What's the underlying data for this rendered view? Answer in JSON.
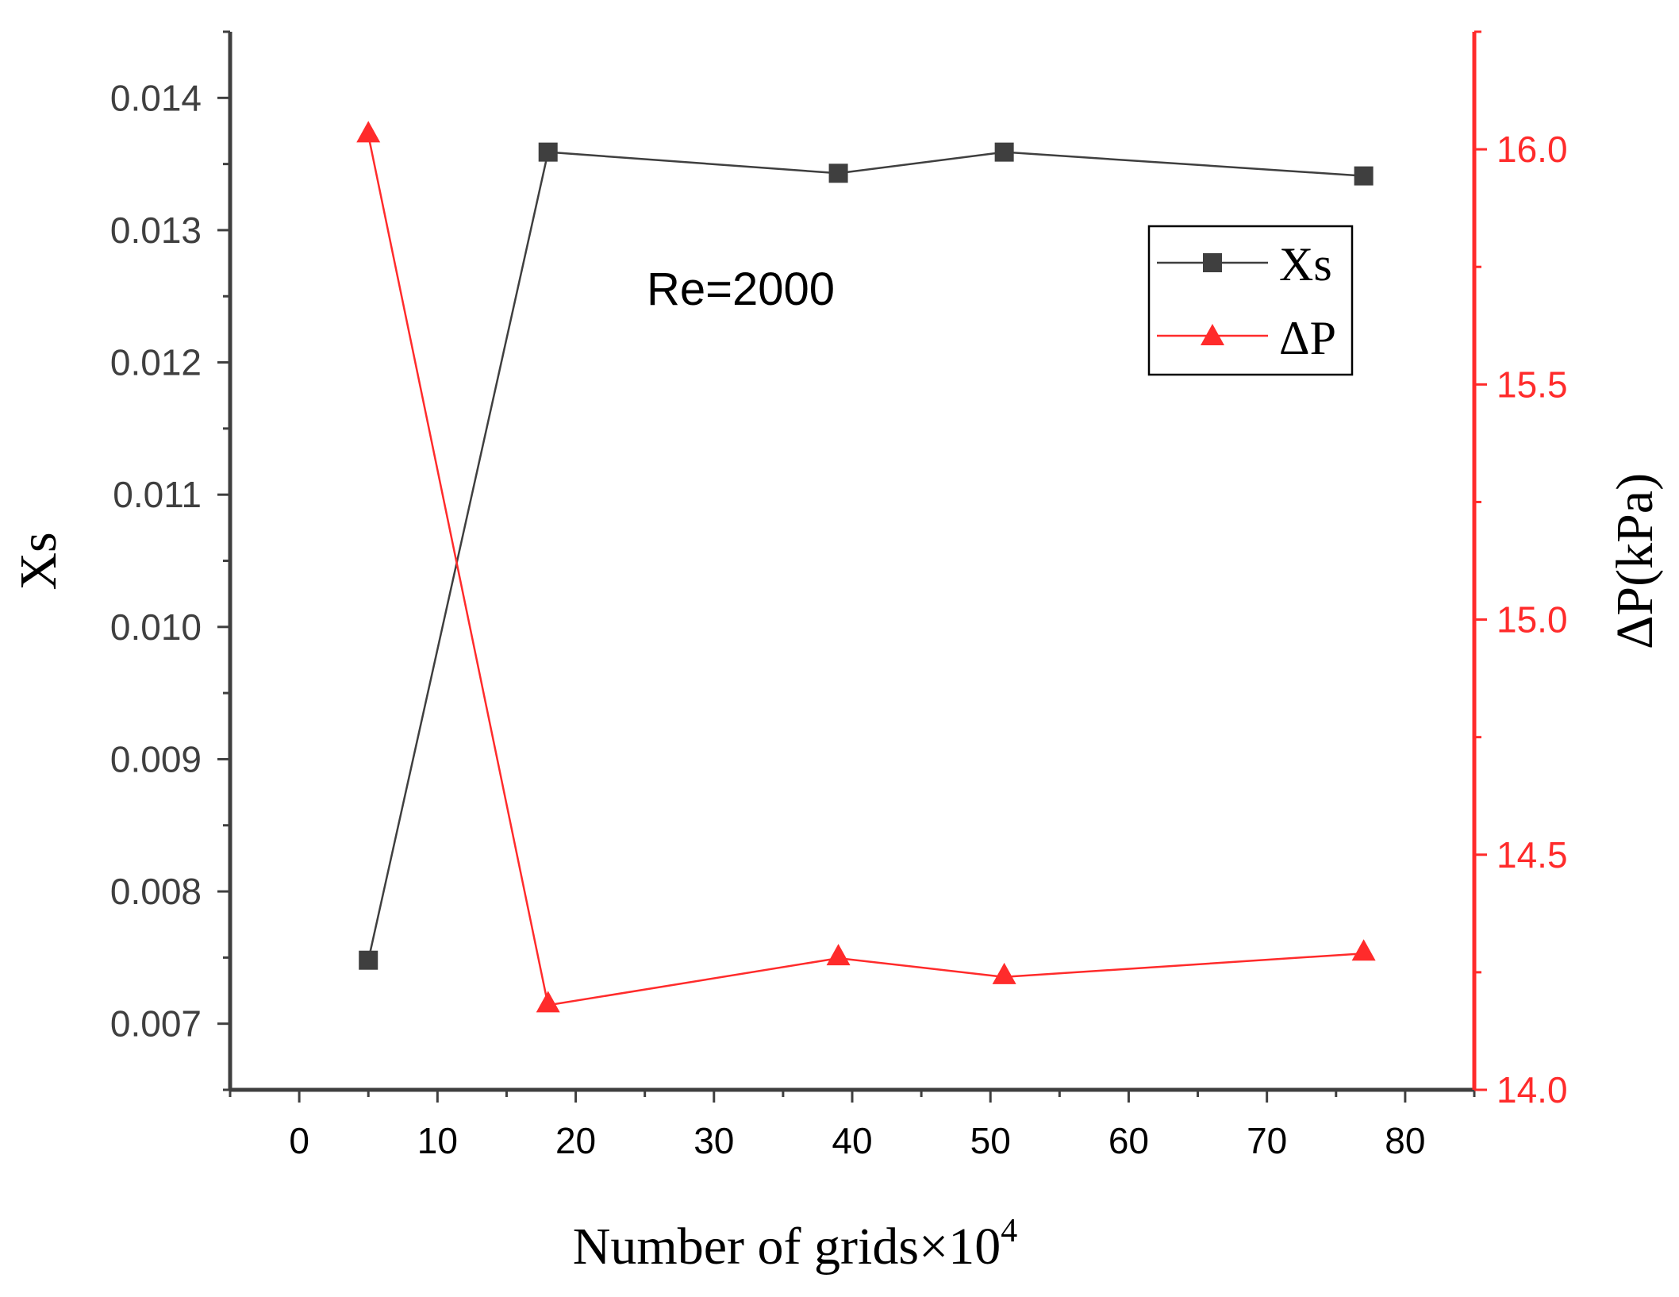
{
  "chart_data": {
    "type": "line",
    "x": [
      5,
      18,
      39,
      51,
      77
    ],
    "xlabel_main": "Number of grids×10",
    "xlabel_sup": "4",
    "xlim": [
      -5,
      85
    ],
    "xticks": [
      0,
      10,
      20,
      30,
      40,
      50,
      60,
      70,
      80
    ],
    "ylabel_left": "Xs",
    "ylim_left": [
      0.0065,
      0.0145
    ],
    "yticks_left": [
      "0.007",
      "0.008",
      "0.009",
      "0.010",
      "0.011",
      "0.012",
      "0.013",
      "0.014"
    ],
    "ylabel_right": "ΔP(kPa)",
    "ylim_right": [
      14.0,
      16.25
    ],
    "yticks_right": [
      "14.0",
      "14.5",
      "15.0",
      "15.5",
      "16.0"
    ],
    "series": [
      {
        "name": "Xs",
        "axis": "left",
        "marker": "square",
        "color": "#3f3f3f",
        "values": [
          0.00748,
          0.01359,
          0.01343,
          0.01359,
          0.01341
        ]
      },
      {
        "name": "ΔP",
        "axis": "right",
        "marker": "triangle",
        "color": "#ff2b2b",
        "values": [
          16.03,
          14.18,
          14.28,
          14.24,
          14.29
        ]
      }
    ],
    "annotation": "Re=2000",
    "legend_position": "top-right",
    "grid": false
  },
  "colors": {
    "left_axis": "#3f3f3f",
    "right_axis": "#ff2b2b"
  }
}
